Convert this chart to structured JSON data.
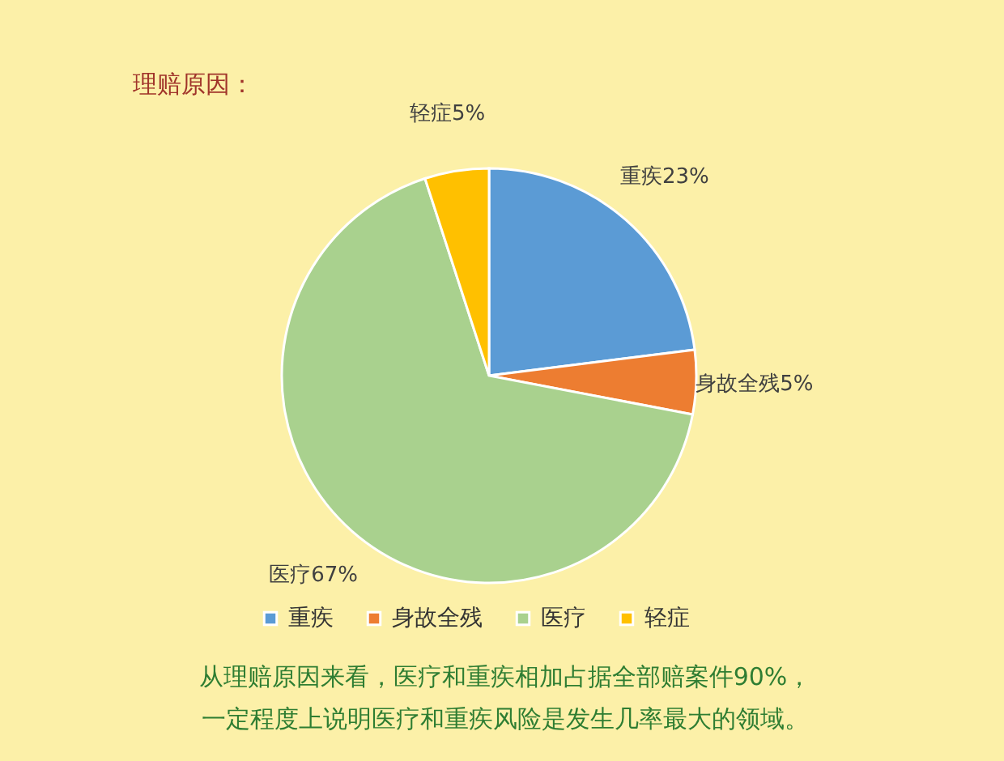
{
  "chart_data": {
    "type": "pie",
    "title": "理赔原因：",
    "categories": [
      "重疾",
      "身故全残",
      "医疗",
      "轻症"
    ],
    "values": [
      23,
      5,
      67,
      5
    ],
    "colors": [
      "#5b9bd5",
      "#ed7d31",
      "#a9d18e",
      "#ffc000"
    ],
    "value_labels": [
      "重疾23%",
      "身故全残5%",
      "医疗67%",
      "轻症5%"
    ],
    "legend": "bottom",
    "annotations": [
      "从理赔原因来看，医疗和重疾相加占据全部赔案件90%，",
      "一定程度上说明医疗和重疾风险是发生几率最大的领域。"
    ]
  }
}
